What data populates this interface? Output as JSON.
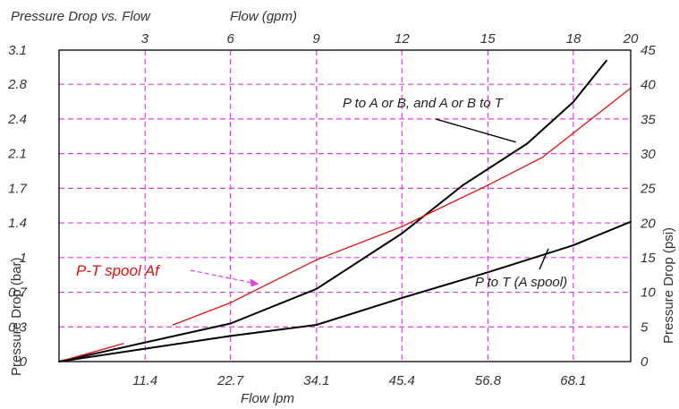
{
  "chart_data": {
    "type": "line",
    "title": "Pressure Drop vs. Flow",
    "top_xlabel": "Flow (gpm)",
    "xlabel": "Flow lpm",
    "ylabel_left": "Pressure Drop (bar)",
    "ylabel_right": "Pressure Drop (psi)",
    "grid": true,
    "grid_color": "#e040e0",
    "xlim_lpm": [
      0,
      75.7
    ],
    "xlim_gpm": [
      0,
      20
    ],
    "ylim_bar": [
      0,
      3.1
    ],
    "ylim_psi": [
      0,
      45
    ],
    "bottom_ticks": [
      {
        "label": "11.4",
        "value": 11.4
      },
      {
        "label": "22.7",
        "value": 22.7
      },
      {
        "label": "34.1",
        "value": 34.1
      },
      {
        "label": "45.4",
        "value": 45.4
      },
      {
        "label": "56.8",
        "value": 56.8
      },
      {
        "label": "68.1",
        "value": 68.1
      }
    ],
    "top_ticks": [
      {
        "label": "3",
        "value": 3
      },
      {
        "label": "6",
        "value": 6
      },
      {
        "label": "9",
        "value": 9
      },
      {
        "label": "12",
        "value": 12
      },
      {
        "label": "15",
        "value": 15
      },
      {
        "label": "18",
        "value": 18
      },
      {
        "label": "20",
        "value": 20
      }
    ],
    "left_ticks": [
      {
        "label": "0",
        "value": 0
      },
      {
        "label": "0.3",
        "value": 0.345
      },
      {
        "label": "0.7",
        "value": 0.69
      },
      {
        "label": "1",
        "value": 1.035
      },
      {
        "label": "1.4",
        "value": 1.38
      },
      {
        "label": "1.7",
        "value": 1.725
      },
      {
        "label": "2.1",
        "value": 2.07
      },
      {
        "label": "2.4",
        "value": 2.415
      },
      {
        "label": "2.8",
        "value": 2.76
      },
      {
        "label": "3.1",
        "value": 3.1
      }
    ],
    "right_ticks": [
      {
        "label": "0",
        "value": 0
      },
      {
        "label": "5",
        "value": 5
      },
      {
        "label": "10",
        "value": 10
      },
      {
        "label": "15",
        "value": 15
      },
      {
        "label": "20",
        "value": 20
      },
      {
        "label": "25",
        "value": 25
      },
      {
        "label": "30",
        "value": 30
      },
      {
        "label": "35",
        "value": 35
      },
      {
        "label": "40",
        "value": 40
      },
      {
        "label": "45",
        "value": 45
      }
    ],
    "series": [
      {
        "name": "P to A or B, and A or B to T",
        "color": "#000000",
        "x_lpm": [
          0,
          22.7,
          34.1,
          45.4,
          53.5,
          62,
          68.1,
          72.5
        ],
        "y_psi": [
          0,
          5.5,
          10.5,
          18.5,
          25.5,
          31.5,
          37.5,
          43.5
        ]
      },
      {
        "name": "P-T spool Af",
        "color": "#e01010",
        "x_lpm": [
          0,
          8.5,
          11.4,
          15.1,
          22.7,
          34.1,
          45.4,
          56.8,
          64,
          75.7
        ],
        "y_psi": [
          0,
          2.6,
          4.3,
          5.3,
          8.5,
          14.7,
          19.5,
          25.5,
          29.5,
          39.5
        ],
        "gaps_after_index": [
          1,
          2
        ]
      },
      {
        "name": "P to T (A spool)",
        "color": "#000000",
        "x_lpm": [
          0,
          22.7,
          34.1,
          45.4,
          56.8,
          68.1,
          75.7
        ],
        "y_psi": [
          0,
          3.7,
          5.3,
          9.2,
          12.9,
          16.8,
          20.2
        ]
      }
    ],
    "annotations": [
      {
        "text": "P to A or B, and A or B to T",
        "series": 0,
        "at_lpm": 60.5,
        "at_psi": 31.7
      },
      {
        "text": "P-T spool Af",
        "series": 1,
        "at_lpm": 26.5,
        "at_psi": 11.2
      },
      {
        "text": "P to T (A spool)",
        "series": 2,
        "at_lpm": 64.8,
        "at_psi": 16.3
      }
    ]
  }
}
